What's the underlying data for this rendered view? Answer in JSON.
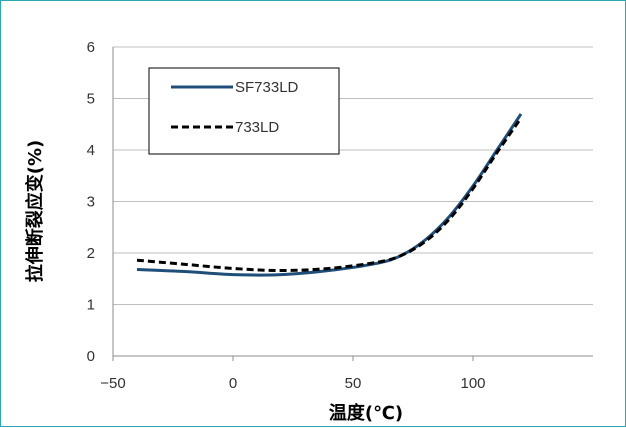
{
  "chart_data": {
    "type": "line",
    "title": "",
    "xlabel": "温度(℃)",
    "ylabel": "拉伸断裂应变(%)",
    "xlim": [
      -50,
      150
    ],
    "ylim": [
      0,
      6
    ],
    "xticks": [
      -50,
      0,
      50,
      100
    ],
    "xtick_labels": [
      "−50",
      "0",
      "50",
      "100"
    ],
    "yticks": [
      0,
      1,
      2,
      3,
      4,
      5,
      6
    ],
    "ytick_labels": [
      "0",
      "1",
      "2",
      "3",
      "4",
      "5",
      "6"
    ],
    "grid": "horizontal",
    "legend_position": "top-left",
    "series": [
      {
        "name": "SF733LD",
        "style": "solid",
        "color": "#1f4e79",
        "x": [
          -40,
          -20,
          0,
          20,
          40,
          60,
          70,
          80,
          90,
          100,
          110,
          120
        ],
        "y": [
          1.68,
          1.64,
          1.58,
          1.58,
          1.66,
          1.8,
          1.95,
          2.25,
          2.7,
          3.3,
          4.0,
          4.7
        ]
      },
      {
        "name": "733LD",
        "style": "dashed",
        "color": "#000000",
        "x": [
          -40,
          -20,
          0,
          20,
          40,
          60,
          70,
          80,
          90,
          100,
          110,
          120
        ],
        "y": [
          1.86,
          1.78,
          1.7,
          1.66,
          1.7,
          1.82,
          1.95,
          2.22,
          2.65,
          3.25,
          3.95,
          4.62
        ]
      }
    ]
  }
}
